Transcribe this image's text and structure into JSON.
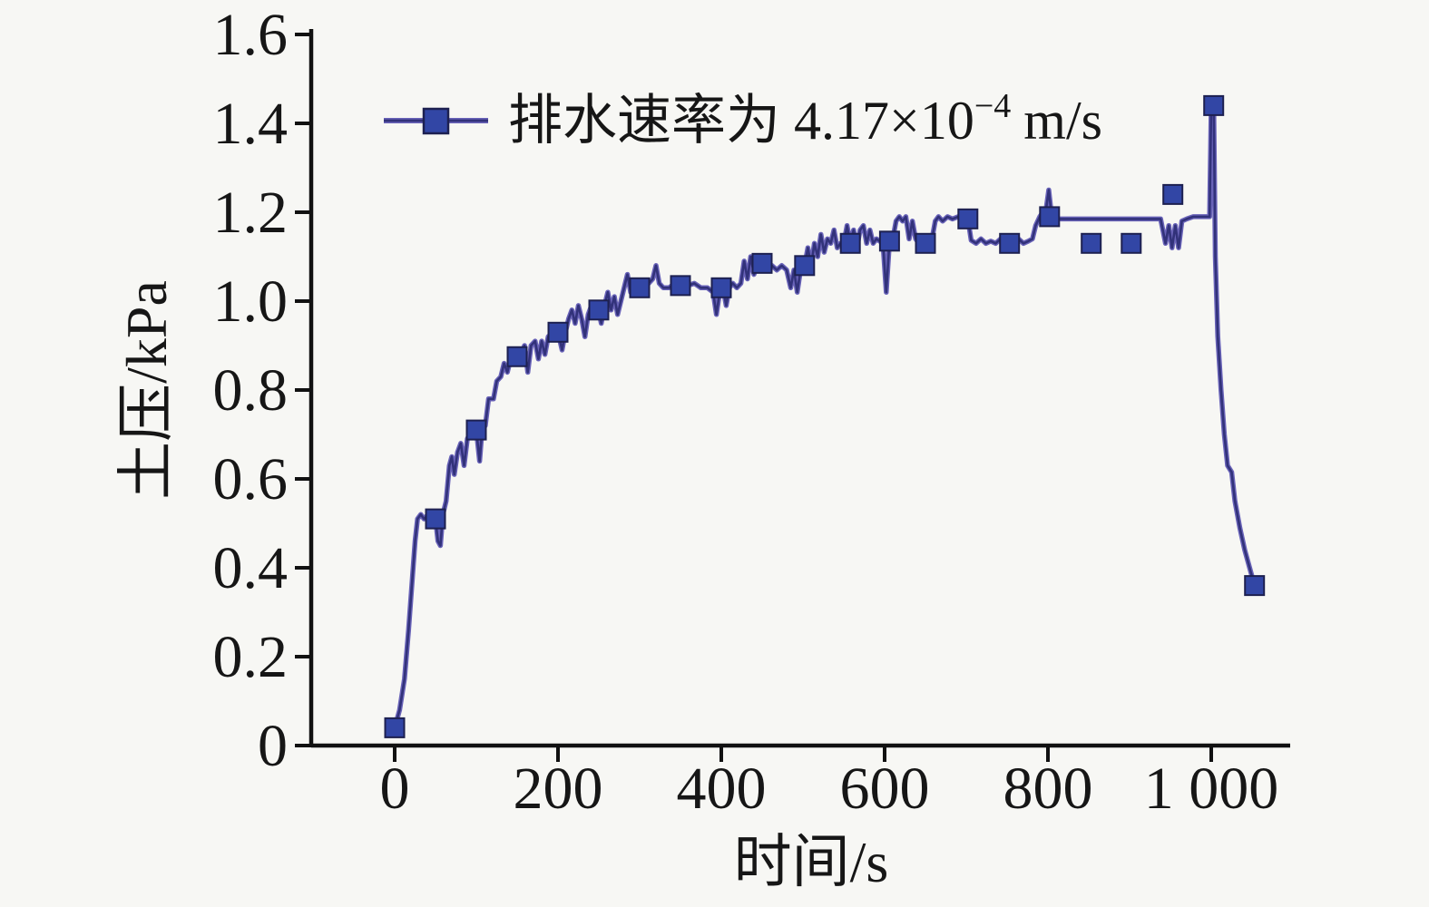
{
  "figure": {
    "background": "#f7f7f4",
    "text_color": "#161616",
    "axis_color": "#111111"
  },
  "legend": {
    "prefix": "排水速率为 4.17×10",
    "exponent": "−4",
    "suffix": "m/s"
  },
  "chart_data": {
    "type": "line",
    "title": "",
    "xlabel": "时间/s",
    "ylabel": "土压/kPa",
    "xlim": [
      -105,
      1095
    ],
    "ylim": [
      0,
      1.6
    ],
    "grid": false,
    "legend_position": "top-left-inside",
    "x_ticks": {
      "values": [
        0,
        200,
        400,
        600,
        800,
        1000
      ],
      "labels": [
        "0",
        "200",
        "400",
        "600",
        "800",
        "1 000"
      ]
    },
    "y_ticks": {
      "values": [
        0,
        0.2,
        0.4,
        0.6,
        0.8,
        1.0,
        1.2,
        1.4,
        1.6
      ],
      "labels": [
        "0",
        "0.2",
        "0.4",
        "0.6",
        "0.8",
        "1.0",
        "1.2",
        "1.4",
        "1.6"
      ]
    },
    "series": [
      {
        "name": "排水速率为 4.17×10⁻⁴ m/s",
        "marker": "square",
        "line_color": "#32327a",
        "line_halo_color": "#6963b8",
        "marker_fill": "#3246a5",
        "marker_stroke": "#1d2050",
        "points": [
          [
            0,
            0.04
          ],
          [
            50,
            0.51
          ],
          [
            100,
            0.71
          ],
          [
            150,
            0.875
          ],
          [
            200,
            0.93
          ],
          [
            250,
            0.98
          ],
          [
            300,
            1.03
          ],
          [
            350,
            1.035
          ],
          [
            400,
            1.03
          ],
          [
            450,
            1.085
          ],
          [
            502,
            1.08
          ],
          [
            558,
            1.13
          ],
          [
            606,
            1.135
          ],
          [
            650,
            1.13
          ],
          [
            702,
            1.185
          ],
          [
            753,
            1.13
          ],
          [
            802,
            1.19
          ],
          [
            853,
            1.13
          ],
          [
            902,
            1.13
          ],
          [
            953,
            1.24
          ],
          [
            1003,
            1.44
          ],
          [
            1053,
            0.36
          ]
        ],
        "line": [
          [
            0,
            0.04
          ],
          [
            6,
            0.08
          ],
          [
            12,
            0.15
          ],
          [
            17,
            0.26
          ],
          [
            21,
            0.36
          ],
          [
            25,
            0.46
          ],
          [
            28,
            0.51
          ],
          [
            32,
            0.52
          ],
          [
            36,
            0.51
          ],
          [
            41,
            0.52
          ],
          [
            46,
            0.52
          ],
          [
            50,
            0.51
          ],
          [
            53,
            0.46
          ],
          [
            56,
            0.45
          ],
          [
            59,
            0.52
          ],
          [
            63,
            0.55
          ],
          [
            67,
            0.63
          ],
          [
            70,
            0.65
          ],
          [
            73,
            0.61
          ],
          [
            77,
            0.66
          ],
          [
            81,
            0.68
          ],
          [
            85,
            0.63
          ],
          [
            89,
            0.69
          ],
          [
            94,
            0.71
          ],
          [
            100,
            0.71
          ],
          [
            104,
            0.64
          ],
          [
            107,
            0.71
          ],
          [
            111,
            0.72
          ],
          [
            115,
            0.78
          ],
          [
            121,
            0.78
          ],
          [
            125,
            0.82
          ],
          [
            130,
            0.83
          ],
          [
            134,
            0.86
          ],
          [
            138,
            0.84
          ],
          [
            142,
            0.87
          ],
          [
            147,
            0.88
          ],
          [
            151,
            0.86
          ],
          [
            155,
            0.88
          ],
          [
            159,
            0.9
          ],
          [
            163,
            0.84
          ],
          [
            167,
            0.9
          ],
          [
            172,
            0.91
          ],
          [
            176,
            0.87
          ],
          [
            180,
            0.91
          ],
          [
            184,
            0.88
          ],
          [
            188,
            0.92
          ],
          [
            194,
            0.93
          ],
          [
            200,
            0.93
          ],
          [
            205,
            0.89
          ],
          [
            209,
            0.93
          ],
          [
            213,
            0.96
          ],
          [
            217,
            0.98
          ],
          [
            221,
            0.95
          ],
          [
            225,
            0.99
          ],
          [
            229,
            0.96
          ],
          [
            233,
            0.92
          ],
          [
            237,
            0.97
          ],
          [
            241,
            0.99
          ],
          [
            245,
            0.97
          ],
          [
            249,
            0.985
          ],
          [
            253,
            0.95
          ],
          [
            257,
            0.99
          ],
          [
            261,
            1.02
          ],
          [
            265,
            0.98
          ],
          [
            269,
            1.01
          ],
          [
            273,
            0.97
          ],
          [
            277,
            1.0
          ],
          [
            281,
            1.03
          ],
          [
            285,
            1.06
          ],
          [
            289,
            1.02
          ],
          [
            293,
            1.03
          ],
          [
            299,
            1.035
          ],
          [
            305,
            1.03
          ],
          [
            311,
            1.04
          ],
          [
            316,
            1.05
          ],
          [
            320,
            1.08
          ],
          [
            324,
            1.04
          ],
          [
            329,
            1.03
          ],
          [
            336,
            1.03
          ],
          [
            343,
            1.04
          ],
          [
            351,
            1.03
          ],
          [
            359,
            1.035
          ],
          [
            367,
            1.04
          ],
          [
            375,
            1.03
          ],
          [
            383,
            1.03
          ],
          [
            390,
            1.02
          ],
          [
            394,
            0.97
          ],
          [
            398,
            1.02
          ],
          [
            402,
            1.03
          ],
          [
            406,
            0.99
          ],
          [
            410,
            1.03
          ],
          [
            414,
            1.04
          ],
          [
            419,
            1.03
          ],
          [
            424,
            1.04
          ],
          [
            428,
            1.09
          ],
          [
            432,
            1.05
          ],
          [
            436,
            1.1
          ],
          [
            440,
            1.06
          ],
          [
            444,
            1.08
          ],
          [
            450,
            1.085
          ],
          [
            456,
            1.07
          ],
          [
            462,
            1.08
          ],
          [
            468,
            1.07
          ],
          [
            474,
            1.08
          ],
          [
            480,
            1.07
          ],
          [
            485,
            1.03
          ],
          [
            489,
            1.07
          ],
          [
            493,
            1.02
          ],
          [
            497,
            1.07
          ],
          [
            502,
            1.08
          ],
          [
            506,
            1.12
          ],
          [
            510,
            1.08
          ],
          [
            514,
            1.13
          ],
          [
            518,
            1.1
          ],
          [
            522,
            1.15
          ],
          [
            526,
            1.11
          ],
          [
            530,
            1.14
          ],
          [
            534,
            1.13
          ],
          [
            538,
            1.16
          ],
          [
            542,
            1.12
          ],
          [
            546,
            1.13
          ],
          [
            550,
            1.13
          ],
          [
            554,
            1.17
          ],
          [
            558,
            1.13
          ],
          [
            562,
            1.16
          ],
          [
            566,
            1.12
          ],
          [
            570,
            1.16
          ],
          [
            574,
            1.17
          ],
          [
            578,
            1.13
          ],
          [
            582,
            1.16
          ],
          [
            586,
            1.13
          ],
          [
            590,
            1.14
          ],
          [
            594,
            1.135
          ],
          [
            598,
            1.13
          ],
          [
            602,
            1.02
          ],
          [
            606,
            1.135
          ],
          [
            610,
            1.14
          ],
          [
            614,
            1.18
          ],
          [
            618,
            1.19
          ],
          [
            622,
            1.18
          ],
          [
            626,
            1.19
          ],
          [
            630,
            1.14
          ],
          [
            634,
            1.18
          ],
          [
            638,
            1.14
          ],
          [
            642,
            1.13
          ],
          [
            648,
            1.13
          ],
          [
            654,
            1.135
          ],
          [
            658,
            1.14
          ],
          [
            662,
            1.18
          ],
          [
            666,
            1.19
          ],
          [
            671,
            1.18
          ],
          [
            677,
            1.19
          ],
          [
            683,
            1.185
          ],
          [
            690,
            1.19
          ],
          [
            696,
            1.18
          ],
          [
            702,
            1.185
          ],
          [
            706,
            1.137
          ],
          [
            712,
            1.13
          ],
          [
            718,
            1.14
          ],
          [
            724,
            1.13
          ],
          [
            730,
            1.135
          ],
          [
            736,
            1.13
          ],
          [
            742,
            1.14
          ],
          [
            748,
            1.13
          ],
          [
            753,
            1.135
          ],
          [
            758,
            1.13
          ],
          [
            764,
            1.14
          ],
          [
            770,
            1.13
          ],
          [
            776,
            1.135
          ],
          [
            781,
            1.14
          ],
          [
            785,
            1.17
          ],
          [
            790,
            1.19
          ],
          [
            794,
            1.2
          ],
          [
            798,
            1.21
          ],
          [
            801,
            1.25
          ],
          [
            804,
            1.2
          ],
          [
            808,
            1.185
          ],
          [
            820,
            1.185
          ],
          [
            840,
            1.185
          ],
          [
            860,
            1.185
          ],
          [
            880,
            1.185
          ],
          [
            900,
            1.185
          ],
          [
            920,
            1.185
          ],
          [
            938,
            1.185
          ],
          [
            944,
            1.13
          ],
          [
            948,
            1.17
          ],
          [
            952,
            1.12
          ],
          [
            956,
            1.17
          ],
          [
            960,
            1.12
          ],
          [
            964,
            1.18
          ],
          [
            970,
            1.185
          ],
          [
            978,
            1.19
          ],
          [
            986,
            1.19
          ],
          [
            994,
            1.19
          ],
          [
            998,
            1.19
          ],
          [
            1000,
            1.44
          ],
          [
            1003,
            1.44
          ],
          [
            1005,
            1.1
          ],
          [
            1008,
            0.92
          ],
          [
            1012,
            0.8
          ],
          [
            1016,
            0.7
          ],
          [
            1020,
            0.63
          ],
          [
            1025,
            0.615
          ],
          [
            1029,
            0.55
          ],
          [
            1035,
            0.49
          ],
          [
            1041,
            0.44
          ],
          [
            1047,
            0.4
          ],
          [
            1053,
            0.36
          ]
        ]
      }
    ]
  }
}
